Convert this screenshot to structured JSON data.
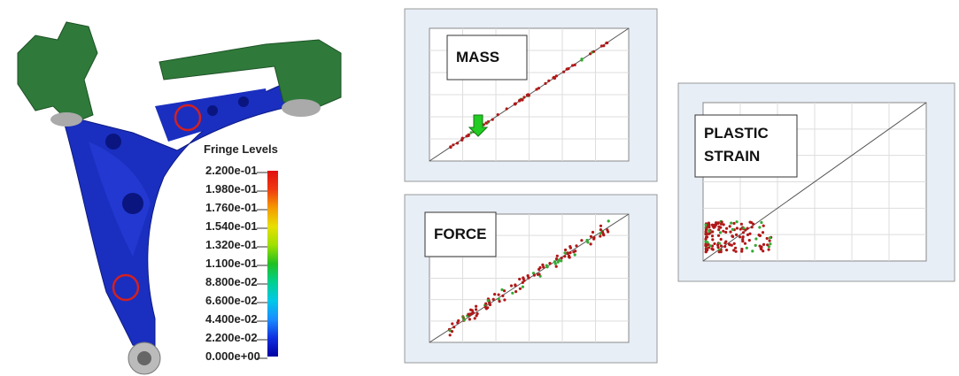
{
  "legend": {
    "title": "Fringe Levels",
    "levels": [
      "2.200e-01",
      "1.980e-01",
      "1.760e-01",
      "1.540e-01",
      "1.320e-01",
      "1.100e-01",
      "8.800e-02",
      "6.600e-02",
      "4.400e-02",
      "2.200e-02",
      "0.000e+00"
    ]
  },
  "panels": [
    {
      "label": [
        "MASS"
      ]
    },
    {
      "label": [
        "FORCE"
      ]
    },
    {
      "label": [
        "PLASTIC",
        "STRAIN"
      ]
    }
  ]
}
